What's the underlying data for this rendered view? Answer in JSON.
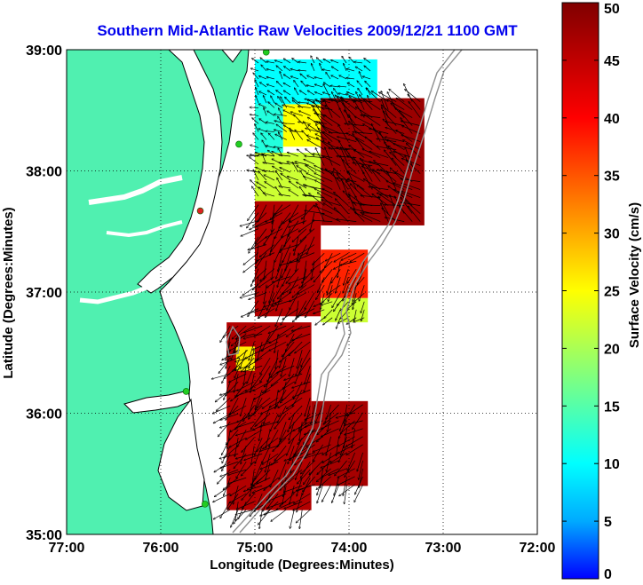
{
  "title": "Southern Mid-Atlantic Raw Velocities 2009/12/21 1100 GMT",
  "map": {
    "xlabel": "Longitude (Degrees:Minutes)",
    "ylabel": "Latitude (Degrees:Minutes)",
    "lon_range": [
      -77,
      -72
    ],
    "lat_range": [
      35,
      39
    ],
    "x_ticks": [
      -77,
      -76,
      -75,
      -74,
      -73,
      -72
    ],
    "x_tick_labels": [
      "77:00",
      "76:00",
      "75:00",
      "74:00",
      "73:00",
      "72:00"
    ],
    "y_ticks": [
      35,
      36,
      37,
      38,
      39
    ],
    "y_tick_labels": [
      "35:00",
      "36:00",
      "37:00",
      "38:00",
      "39:00"
    ],
    "grid": "dotted",
    "land_color": "#50f0b0",
    "coastline_color": "#000000",
    "bathymetry_color": "#909090",
    "stations": [
      {
        "lon": -74.88,
        "lat": 38.98,
        "status": "active",
        "color": "#22cc22"
      },
      {
        "lon": -75.17,
        "lat": 38.22,
        "status": "active",
        "color": "#22cc22"
      },
      {
        "lon": -75.58,
        "lat": 37.67,
        "status": "inactive",
        "color": "#dd2222"
      },
      {
        "lon": -75.73,
        "lat": 36.18,
        "status": "active",
        "color": "#22cc22"
      },
      {
        "lon": -75.53,
        "lat": 35.25,
        "status": "active",
        "color": "#22cc22"
      }
    ]
  },
  "colorbar": {
    "label": "Surface Velocity (cm/s)",
    "min": 0,
    "max": 50,
    "ticks": [
      0,
      5,
      10,
      15,
      20,
      25,
      30,
      35,
      40,
      45,
      50
    ],
    "tick_labels": [
      "0",
      "5",
      "10",
      "15",
      "20",
      "25",
      "30",
      "35",
      "40",
      "45",
      "50"
    ],
    "colormap": [
      "#0000ff",
      "#00aaff",
      "#00ffff",
      "#55ffaa",
      "#aaff55",
      "#ffff00",
      "#ffaa00",
      "#ff5500",
      "#ff0000",
      "#c00000",
      "#800000"
    ]
  },
  "chart_data": {
    "type": "heatmap",
    "title": "Southern Mid-Atlantic Raw Velocities 2009/12/21 1100 GMT",
    "xlabel": "Longitude (Degrees:Minutes)",
    "ylabel": "Latitude (Degrees:Minutes)",
    "value_label": "Surface Velocity (cm/s)",
    "xlim": [
      -77,
      -72
    ],
    "ylim": [
      35,
      39
    ],
    "clim": [
      0,
      50
    ],
    "regions": [
      {
        "lon_min": -75.0,
        "lon_max": -73.7,
        "lat_min": 38.55,
        "lat_max": 38.92,
        "speed": 10
      },
      {
        "lon_min": -75.0,
        "lon_max": -74.7,
        "lat_min": 38.1,
        "lat_max": 38.55,
        "speed": 12
      },
      {
        "lon_min": -74.7,
        "lon_max": -74.2,
        "lat_min": 38.2,
        "lat_max": 38.55,
        "speed": 25
      },
      {
        "lon_min": -74.3,
        "lon_max": -73.2,
        "lat_min": 37.55,
        "lat_max": 38.6,
        "speed": 48
      },
      {
        "lon_min": -75.0,
        "lon_max": -74.3,
        "lat_min": 37.75,
        "lat_max": 38.15,
        "speed": 22
      },
      {
        "lon_min": -75.0,
        "lon_max": -74.3,
        "lat_min": 36.8,
        "lat_max": 37.75,
        "speed": 46
      },
      {
        "lon_min": -74.3,
        "lon_max": -73.8,
        "lat_min": 36.95,
        "lat_max": 37.35,
        "speed": 38
      },
      {
        "lon_min": -74.3,
        "lon_max": -73.8,
        "lat_min": 36.75,
        "lat_max": 36.95,
        "speed": 22
      },
      {
        "lon_min": -75.3,
        "lon_max": -74.4,
        "lat_min": 35.2,
        "lat_max": 36.75,
        "speed": 46
      },
      {
        "lon_min": -75.2,
        "lon_max": -75.0,
        "lat_min": 36.35,
        "lat_max": 36.55,
        "speed": 26
      },
      {
        "lon_min": -74.4,
        "lon_max": -73.8,
        "lat_min": 35.4,
        "lat_max": 36.1,
        "speed": 47
      }
    ],
    "vectors": "dense field of surface current arrows over the coverage area"
  }
}
